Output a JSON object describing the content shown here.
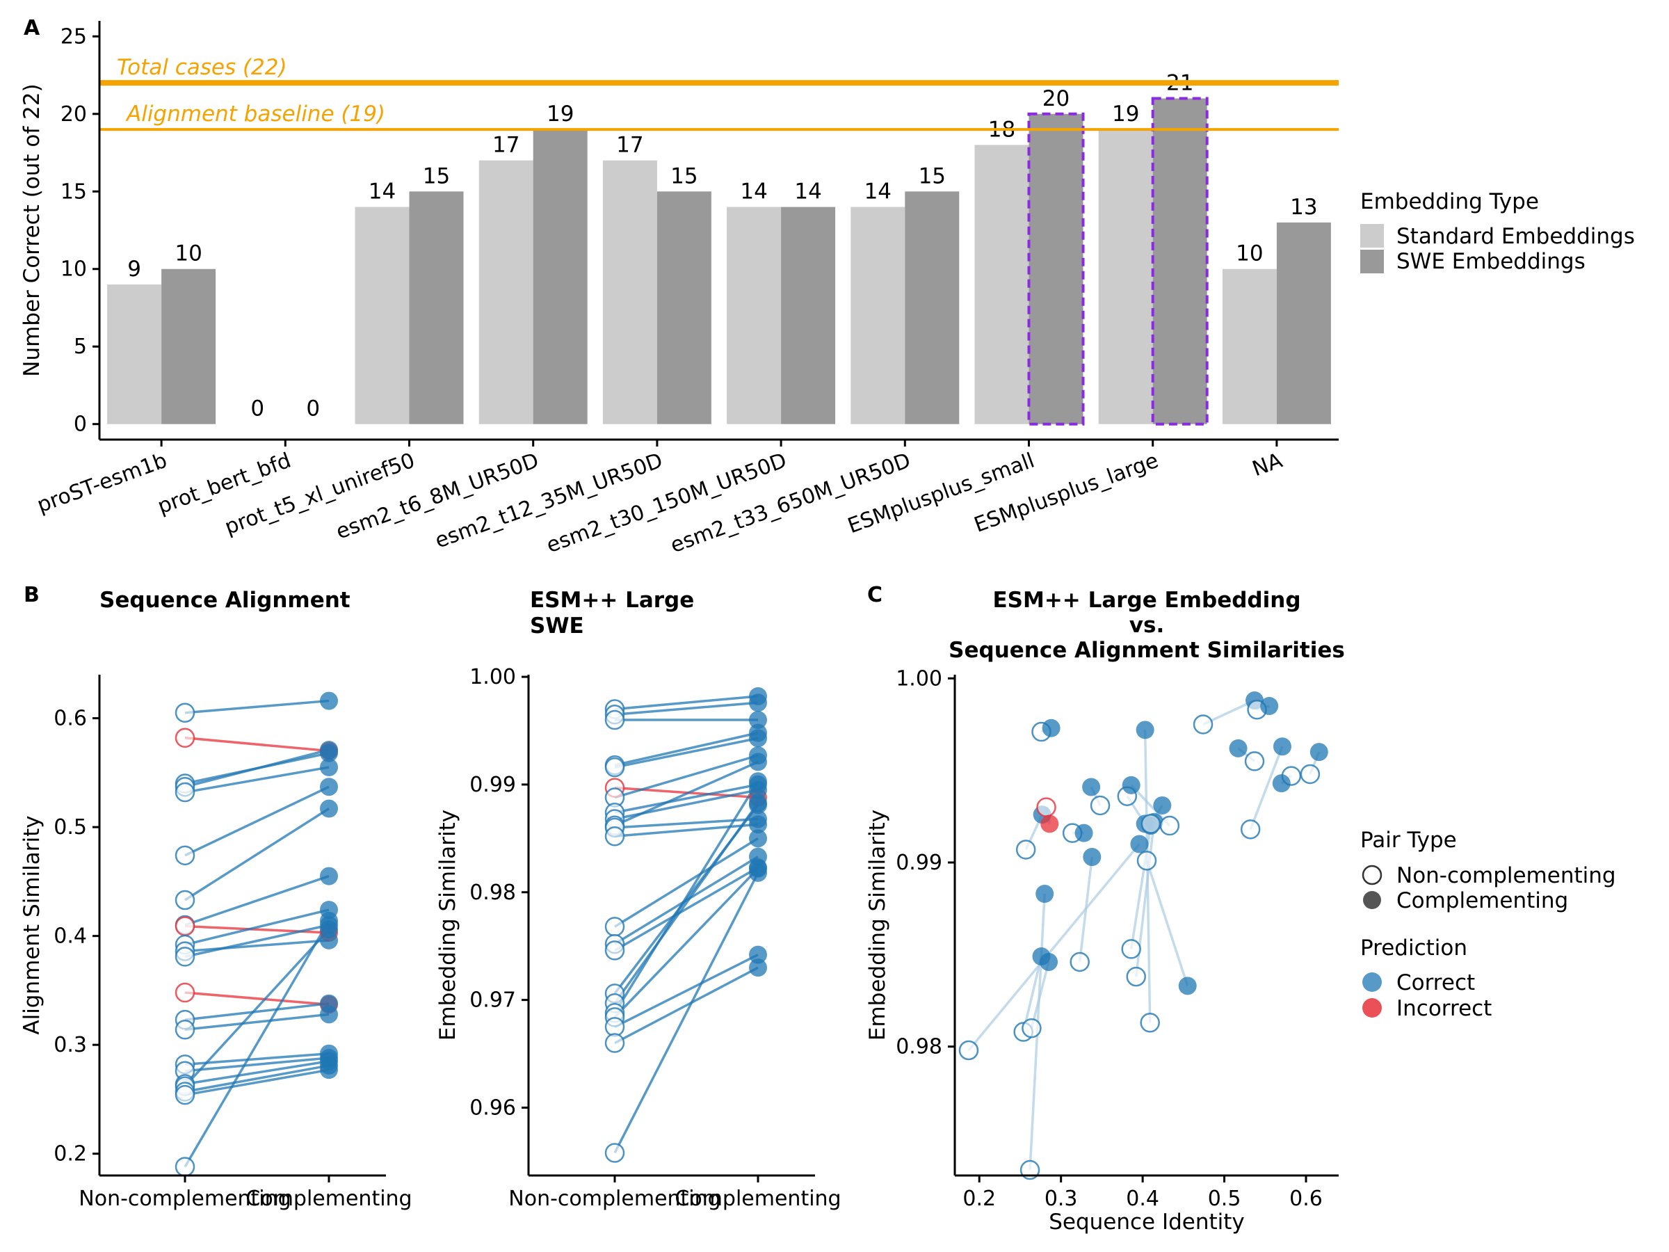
{
  "colors": {
    "standard": "#CCCCCC",
    "swe": "#999999",
    "reference": "#F5A300",
    "highlight": "#8A2BE2",
    "correct": "#1F77B4",
    "incorrect": "#E8303A",
    "pairLink": "#A9CCE3"
  },
  "chart_data": [
    {
      "panel": "A",
      "type": "bar",
      "categories": [
        "proST-esm1b",
        "prot_bert_bfd",
        "prot_t5_xl_uniref50",
        "esm2_t6_8M_UR50D",
        "esm2_t12_35M_UR50D",
        "esm2_t30_150M_UR50D",
        "esm2_t33_650M_UR50D",
        "ESMplusplus_small",
        "ESMplusplus_large",
        "NA"
      ],
      "series": [
        {
          "name": "Standard Embeddings",
          "values": [
            9,
            0,
            14,
            17,
            17,
            14,
            14,
            18,
            19,
            10
          ]
        },
        {
          "name": "SWE Embeddings",
          "values": [
            10,
            0,
            15,
            19,
            15,
            14,
            15,
            20,
            21,
            13
          ]
        }
      ],
      "value_labels": {
        "standard": [
          "9",
          "",
          "14",
          "17",
          "17",
          "14",
          "14",
          "18",
          "19",
          "10"
        ],
        "swe": [
          "10",
          "0",
          "15",
          "19",
          "15",
          "14",
          "15",
          "20",
          "21",
          "13"
        ],
        "zero_labels": [
          "0",
          "0"
        ]
      },
      "highlighted_bars": [
        {
          "category": "ESMplusplus_small",
          "series": "SWE Embeddings"
        },
        {
          "category": "ESMplusplus_large",
          "series": "SWE Embeddings"
        }
      ],
      "reference_lines": [
        {
          "value": 22,
          "label": "Total cases (22)"
        },
        {
          "value": 19,
          "label": "Alignment baseline (19)"
        }
      ],
      "ylabel": "Number Correct (out of 22)",
      "ylim": [
        -1,
        26
      ],
      "yticks": [
        "0",
        "5",
        "10",
        "15",
        "20",
        "25"
      ],
      "legend": {
        "title": "Embedding Type",
        "position": "right"
      }
    },
    {
      "panel": "B1",
      "type": "line",
      "title": "Sequence Alignment",
      "categories": [
        "Non-complementing",
        "Complementing"
      ],
      "ylabel": "Alignment Similarity",
      "ylim": [
        0.18,
        0.64
      ],
      "yticks": [
        "0.2",
        "0.3",
        "0.4",
        "0.5",
        "0.6"
      ],
      "pairs": [
        {
          "non": 0.605,
          "comp": 0.616,
          "pred": "Correct"
        },
        {
          "non": 0.582,
          "comp": 0.57,
          "pred": "Incorrect"
        },
        {
          "non": 0.54,
          "comp": 0.568,
          "pred": "Correct"
        },
        {
          "non": 0.537,
          "comp": 0.571,
          "pred": "Correct"
        },
        {
          "non": 0.532,
          "comp": 0.555,
          "pred": "Correct"
        },
        {
          "non": 0.474,
          "comp": 0.537,
          "pred": "Correct"
        },
        {
          "non": 0.433,
          "comp": 0.517,
          "pred": "Correct"
        },
        {
          "non": 0.41,
          "comp": 0.455,
          "pred": "Correct"
        },
        {
          "non": 0.409,
          "comp": 0.403,
          "pred": "Incorrect"
        },
        {
          "non": 0.392,
          "comp": 0.424,
          "pred": "Correct"
        },
        {
          "non": 0.386,
          "comp": 0.396,
          "pred": "Correct"
        },
        {
          "non": 0.381,
          "comp": 0.41,
          "pred": "Correct"
        },
        {
          "non": 0.348,
          "comp": 0.337,
          "pred": "Incorrect"
        },
        {
          "non": 0.323,
          "comp": 0.338,
          "pred": "Correct"
        },
        {
          "non": 0.314,
          "comp": 0.328,
          "pred": "Correct"
        },
        {
          "non": 0.282,
          "comp": 0.292,
          "pred": "Correct"
        },
        {
          "non": 0.276,
          "comp": 0.288,
          "pred": "Correct"
        },
        {
          "non": 0.264,
          "comp": 0.285,
          "pred": "Correct"
        },
        {
          "non": 0.262,
          "comp": 0.406,
          "pred": "Correct"
        },
        {
          "non": 0.257,
          "comp": 0.281,
          "pred": "Correct"
        },
        {
          "non": 0.254,
          "comp": 0.277,
          "pred": "Correct"
        },
        {
          "non": 0.188,
          "comp": 0.414,
          "pred": "Correct"
        }
      ]
    },
    {
      "panel": "B2",
      "type": "line",
      "title": "ESM++ Large\nSWE",
      "categories": [
        "Non-complementing",
        "Complementing"
      ],
      "ylabel": "Embedding Similarity",
      "ylim": [
        0.9537,
        1.0002
      ],
      "yticks": [
        "0.96",
        "0.97",
        "0.98",
        "0.99",
        "1.00"
      ],
      "pairs": [
        {
          "non": 0.997,
          "comp": 0.9982,
          "pred": "Correct"
        },
        {
          "non": 0.9965,
          "comp": 0.9976,
          "pred": "Correct"
        },
        {
          "non": 0.996,
          "comp": 0.996,
          "pred": "Correct"
        },
        {
          "non": 0.9918,
          "comp": 0.9948,
          "pred": "Correct"
        },
        {
          "non": 0.9916,
          "comp": 0.9943,
          "pred": "Correct"
        },
        {
          "non": 0.9897,
          "comp": 0.9888,
          "pred": "Incorrect"
        },
        {
          "non": 0.9888,
          "comp": 0.9927,
          "pred": "Correct"
        },
        {
          "non": 0.9874,
          "comp": 0.99,
          "pred": "Correct"
        },
        {
          "non": 0.9868,
          "comp": 0.9895,
          "pred": "Correct"
        },
        {
          "non": 0.9862,
          "comp": 0.9921,
          "pred": "Correct"
        },
        {
          "non": 0.986,
          "comp": 0.9868,
          "pred": "Correct"
        },
        {
          "non": 0.9852,
          "comp": 0.9863,
          "pred": "Correct"
        },
        {
          "non": 0.9768,
          "comp": 0.985,
          "pred": "Correct"
        },
        {
          "non": 0.9752,
          "comp": 0.9833,
          "pred": "Correct"
        },
        {
          "non": 0.9746,
          "comp": 0.9823,
          "pred": "Correct"
        },
        {
          "non": 0.9706,
          "comp": 0.9881,
          "pred": "Correct"
        },
        {
          "non": 0.9697,
          "comp": 0.9883,
          "pred": "Correct"
        },
        {
          "non": 0.9688,
          "comp": 0.9903,
          "pred": "Correct"
        },
        {
          "non": 0.9684,
          "comp": 0.9822,
          "pred": "Correct"
        },
        {
          "non": 0.9675,
          "comp": 0.9742,
          "pred": "Correct"
        },
        {
          "non": 0.966,
          "comp": 0.973,
          "pred": "Correct"
        },
        {
          "non": 0.9558,
          "comp": 0.9818,
          "pred": "Correct"
        }
      ]
    },
    {
      "panel": "C",
      "type": "scatter",
      "title": "ESM++ Large Embedding\nvs.\nSequence Alignment Similarities",
      "xlabel": "Sequence Identity",
      "ylabel": "Embedding Similarity",
      "xlim": [
        0.17,
        0.64
      ],
      "ylim": [
        0.973,
        1.0002
      ],
      "xticks": [
        "0.2",
        "0.3",
        "0.4",
        "0.5",
        "0.6"
      ],
      "yticks": [
        "0.98",
        "0.99",
        "1.00"
      ],
      "pairs": [
        {
          "non": [
            0.187,
            0.9798
          ],
          "comp": [
            0.396,
            0.991
          ],
          "pred": "Correct"
        },
        {
          "non": [
            0.257,
            0.9907
          ],
          "comp": [
            0.277,
            0.9926
          ],
          "pred": "Correct"
        },
        {
          "non": [
            0.262,
            0.9733
          ],
          "comp": [
            0.28,
            0.9883
          ],
          "pred": "Correct"
        },
        {
          "non": [
            0.254,
            0.9808
          ],
          "comp": [
            0.276,
            0.9849
          ],
          "pred": "Correct"
        },
        {
          "non": [
            0.264,
            0.981
          ],
          "comp": [
            0.285,
            0.9846
          ],
          "pred": "Correct"
        },
        {
          "non": [
            0.276,
            0.9971
          ],
          "comp": [
            0.288,
            0.9973
          ],
          "pred": "Correct"
        },
        {
          "non": [
            0.282,
            0.993
          ],
          "comp": [
            0.286,
            0.9921
          ],
          "pred": "Incorrect"
        },
        {
          "non": [
            0.314,
            0.9916
          ],
          "comp": [
            0.328,
            0.9916
          ],
          "pred": "Correct"
        },
        {
          "non": [
            0.323,
            0.9846
          ],
          "comp": [
            0.338,
            0.9903
          ],
          "pred": "Correct"
        },
        {
          "non": [
            0.348,
            0.9931
          ],
          "comp": [
            0.337,
            0.9941
          ],
          "pred": "Correct"
        },
        {
          "non": [
            0.381,
            0.9936
          ],
          "comp": [
            0.403,
            0.9921
          ],
          "pred": "Correct"
        },
        {
          "non": [
            0.386,
            0.9853
          ],
          "comp": [
            0.41,
            0.992
          ],
          "pred": "Correct"
        },
        {
          "non": [
            0.392,
            0.9838
          ],
          "comp": [
            0.414,
            0.9922
          ],
          "pred": "Correct"
        },
        {
          "non": [
            0.409,
            0.9813
          ],
          "comp": [
            0.403,
            0.9972
          ],
          "pred": "Correct"
        },
        {
          "non": [
            0.41,
            0.9921
          ],
          "comp": [
            0.424,
            0.9931
          ],
          "pred": "Correct"
        },
        {
          "non": [
            0.433,
            0.992
          ],
          "comp": [
            0.386,
            0.9942
          ],
          "pred": "Correct"
        },
        {
          "non": [
            0.474,
            0.9975
          ],
          "comp": [
            0.537,
            0.9988
          ],
          "pred": "Correct"
        },
        {
          "non": [
            0.532,
            0.9918
          ],
          "comp": [
            0.571,
            0.9963
          ],
          "pred": "Correct"
        },
        {
          "non": [
            0.537,
            0.9955
          ],
          "comp": [
            0.517,
            0.9962
          ],
          "pred": "Correct"
        },
        {
          "non": [
            0.54,
            0.9983
          ],
          "comp": [
            0.555,
            0.9985
          ],
          "pred": "Correct"
        },
        {
          "non": [
            0.582,
            0.9947
          ],
          "comp": [
            0.57,
            0.9943
          ],
          "pred": "Correct"
        },
        {
          "non": [
            0.605,
            0.9948
          ],
          "comp": [
            0.616,
            0.996
          ],
          "pred": "Correct"
        },
        {
          "non": [
            0.405,
            0.9901
          ],
          "comp": [
            0.455,
            0.9833
          ],
          "pred": "Correct"
        }
      ]
    }
  ],
  "panel_letters": {
    "a": "A",
    "b": "B",
    "c": "C"
  },
  "legend_embedding": {
    "title": "Embedding Type",
    "items": [
      "Standard Embeddings",
      "SWE Embeddings"
    ]
  },
  "legend_pair": {
    "title": "Pair Type",
    "items": [
      "Non-complementing",
      "Complementing"
    ]
  },
  "legend_prediction": {
    "title": "Prediction",
    "items": [
      "Correct",
      "Incorrect"
    ]
  }
}
